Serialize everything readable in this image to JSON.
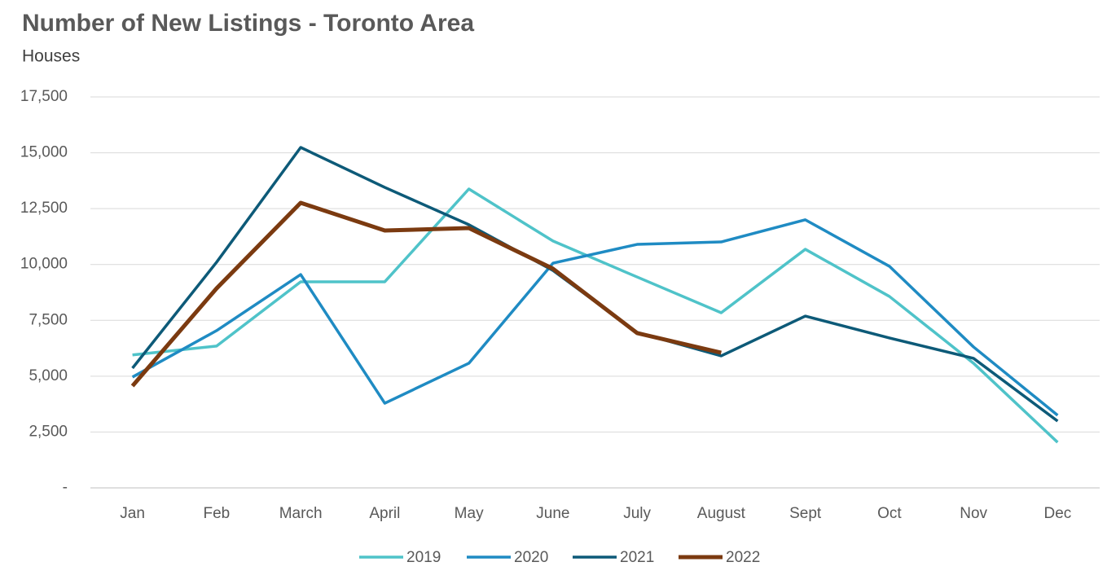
{
  "chart_data": {
    "type": "line",
    "title": "Number of New Listings - Toronto Area",
    "subtitle": "Houses",
    "categories": [
      "Jan",
      "Feb",
      "March",
      "April",
      "May",
      "June",
      "July",
      "August",
      "Sept",
      "Oct",
      "Nov",
      "Dec"
    ],
    "series": [
      {
        "name": "2019",
        "color": "#4fc3c9",
        "values": [
          5950,
          6350,
          9225,
          9225,
          13380,
          11050,
          9440,
          7840,
          10680,
          8570,
          5580,
          2040
        ]
      },
      {
        "name": "2020",
        "color": "#1f8bc3",
        "values": [
          4960,
          7040,
          9550,
          3790,
          5580,
          10060,
          10900,
          11010,
          12000,
          9920,
          6310,
          3250
        ]
      },
      {
        "name": "2021",
        "color": "#0d5a78",
        "values": [
          5360,
          10100,
          15240,
          13450,
          11780,
          9730,
          6960,
          5910,
          7690,
          6710,
          5800,
          2990
        ]
      },
      {
        "name": "2022",
        "color": "#7b3a10",
        "values": [
          4560,
          8930,
          12760,
          11520,
          11630,
          9810,
          6930,
          6050,
          null,
          null,
          null,
          null
        ]
      }
    ],
    "ylim": [
      0,
      17500
    ],
    "yticks": [
      {
        "value": 0,
        "label": "-"
      },
      {
        "value": 2500,
        "label": "2,500"
      },
      {
        "value": 5000,
        "label": "5,000"
      },
      {
        "value": 7500,
        "label": "7,500"
      },
      {
        "value": 10000,
        "label": "10,000"
      },
      {
        "value": 12500,
        "label": "12,500"
      },
      {
        "value": 15000,
        "label": "15,000"
      },
      {
        "value": 17500,
        "label": "17,500"
      }
    ],
    "grid": true,
    "legend": "bottom"
  }
}
